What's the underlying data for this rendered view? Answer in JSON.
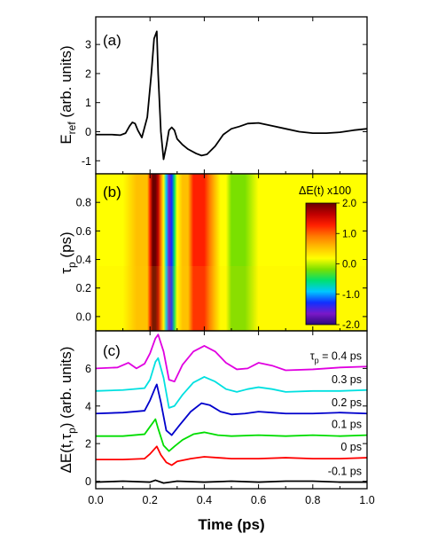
{
  "chart_data": [
    {
      "panel_label": "(a)",
      "type": "line",
      "ylabel": "E",
      "ylabel_sub": "ref",
      "ylabel_tail": " (arb. units)",
      "xlim": [
        0.0,
        1.0
      ],
      "ylim": [
        -1.45,
        3.95
      ],
      "yticks": [
        -1,
        0,
        1,
        2,
        3
      ],
      "ytick_labels": [
        "-1",
        "0",
        "1",
        "2",
        "3"
      ],
      "series": [
        {
          "color": "#000000",
          "x": [
            0.0,
            0.03,
            0.06,
            0.09,
            0.11,
            0.125,
            0.135,
            0.145,
            0.155,
            0.17,
            0.19,
            0.205,
            0.215,
            0.225,
            0.23,
            0.24,
            0.25,
            0.26,
            0.27,
            0.28,
            0.29,
            0.3,
            0.32,
            0.34,
            0.37,
            0.39,
            0.41,
            0.44,
            0.47,
            0.5,
            0.53,
            0.56,
            0.6,
            0.65,
            0.7,
            0.75,
            0.8,
            0.85,
            0.9,
            0.95,
            1.0
          ],
          "y": [
            -0.1,
            -0.1,
            -0.1,
            -0.12,
            -0.05,
            0.2,
            0.32,
            0.28,
            0.05,
            -0.2,
            0.5,
            2.0,
            3.2,
            3.45,
            2.0,
            0.0,
            -0.95,
            -0.5,
            0.05,
            0.15,
            0.05,
            -0.25,
            -0.45,
            -0.6,
            -0.75,
            -0.82,
            -0.78,
            -0.5,
            -0.1,
            0.1,
            0.18,
            0.28,
            0.3,
            0.2,
            0.1,
            0.0,
            -0.05,
            -0.05,
            -0.02,
            0.05,
            0.1
          ]
        }
      ]
    },
    {
      "panel_label": "(b)",
      "type": "heatmap",
      "ylabel": "τ",
      "ylabel_sub": "p",
      "ylabel_tail": " (ps)",
      "xlim": [
        0.0,
        1.0
      ],
      "ylim": [
        -0.1,
        1.0
      ],
      "yticks": [
        0.0,
        0.2,
        0.4,
        0.6,
        0.8
      ],
      "ytick_labels": [
        "0.0",
        "0.2",
        "0.4",
        "0.6",
        "0.8"
      ],
      "colorbar_title": "ΔE(t) x100",
      "colorbar_range": [
        -2.0,
        2.0
      ],
      "colorbar_ticks": [
        "2.0",
        "1.0",
        "0.0",
        "-1.0",
        "-2.0"
      ],
      "colormap": [
        "#2a0a7a",
        "#7a18c8",
        "#1030ff",
        "#00c8ff",
        "#00e070",
        "#7ae000",
        "#ffff00",
        "#ffc000",
        "#ff7a00",
        "#ff2000",
        "#c00000",
        "#6a0000"
      ],
      "x": [
        0.0,
        0.1,
        0.15,
        0.19,
        0.2,
        0.21,
        0.22,
        0.23,
        0.24,
        0.25,
        0.26,
        0.27,
        0.28,
        0.29,
        0.3,
        0.32,
        0.34,
        0.36,
        0.38,
        0.4,
        0.42,
        0.44,
        0.46,
        0.48,
        0.5,
        0.55,
        0.6,
        0.65,
        0.7,
        0.8,
        1.0
      ],
      "values_at_top": [
        0.3,
        0.3,
        0.45,
        0.6,
        1.2,
        2.0,
        2.0,
        2.0,
        1.6,
        0.5,
        -0.6,
        -1.5,
        -1.6,
        -0.9,
        0.0,
        0.5,
        0.8,
        1.3,
        1.5,
        1.5,
        1.5,
        1.1,
        0.5,
        0.2,
        -0.1,
        -0.4,
        0.1,
        0.3,
        0.3,
        0.3,
        0.3
      ],
      "values_at_bottom": [
        0.3,
        0.3,
        0.45,
        0.6,
        1.0,
        1.8,
        2.0,
        1.5,
        0.2,
        -0.5,
        -1.2,
        -1.7,
        -1.0,
        -0.3,
        0.2,
        0.4,
        0.6,
        0.9,
        1.1,
        1.0,
        0.6,
        0.3,
        0.2,
        0.1,
        0.0,
        -0.3,
        0.1,
        0.3,
        0.3,
        0.3,
        0.3
      ]
    },
    {
      "panel_label": "(c)",
      "type": "line",
      "ylabel": "ΔE(t,τ",
      "ylabel_sub": "p",
      "ylabel_tail": ") (arb. units)",
      "xlabel": "Time (ps)",
      "xlim": [
        0.0,
        1.0
      ],
      "ylim": [
        -0.4,
        8.0
      ],
      "xticks": [
        0.0,
        0.2,
        0.4,
        0.6,
        0.8,
        1.0
      ],
      "xtick_labels": [
        "0.0",
        "0.2",
        "0.4",
        "0.6",
        "0.8",
        "1.0"
      ],
      "yticks": [
        0,
        2,
        4,
        6
      ],
      "ytick_labels": [
        "0",
        "2",
        "4",
        "6"
      ],
      "series": [
        {
          "label": "-0.1 ps",
          "color": "#000000",
          "x": [
            0.0,
            0.1,
            0.2,
            0.22,
            0.25,
            0.3,
            0.4,
            0.5,
            0.6,
            0.7,
            0.8,
            0.9,
            1.0
          ],
          "y": [
            -0.05,
            0.0,
            -0.05,
            0.05,
            -0.1,
            0.0,
            -0.05,
            0.0,
            -0.05,
            0.0,
            0.0,
            -0.05,
            -0.05
          ]
        },
        {
          "label": "0 ps",
          "color": "#ff0000",
          "x": [
            0.0,
            0.1,
            0.18,
            0.2,
            0.225,
            0.24,
            0.26,
            0.28,
            0.3,
            0.35,
            0.4,
            0.45,
            0.5,
            0.6,
            0.7,
            0.8,
            0.9,
            1.0
          ],
          "y": [
            1.15,
            1.15,
            1.2,
            1.45,
            1.85,
            1.4,
            1.0,
            0.85,
            1.05,
            1.2,
            1.3,
            1.25,
            1.2,
            1.2,
            1.25,
            1.2,
            1.2,
            1.25
          ]
        },
        {
          "label": "0.1 ps",
          "color": "#00dd00",
          "x": [
            0.0,
            0.1,
            0.18,
            0.2,
            0.22,
            0.23,
            0.25,
            0.27,
            0.29,
            0.32,
            0.36,
            0.4,
            0.45,
            0.5,
            0.6,
            0.7,
            0.8,
            0.9,
            1.0
          ],
          "y": [
            2.4,
            2.4,
            2.5,
            2.9,
            3.3,
            2.8,
            1.9,
            1.6,
            1.85,
            2.2,
            2.5,
            2.6,
            2.45,
            2.4,
            2.45,
            2.4,
            2.45,
            2.4,
            2.45
          ]
        },
        {
          "label": "0.2 ps",
          "color": "#0000cc",
          "x": [
            0.0,
            0.1,
            0.18,
            0.2,
            0.22,
            0.225,
            0.24,
            0.26,
            0.28,
            0.31,
            0.35,
            0.39,
            0.42,
            0.46,
            0.5,
            0.55,
            0.6,
            0.65,
            0.7,
            0.8,
            0.9,
            1.0
          ],
          "y": [
            3.6,
            3.65,
            3.75,
            4.3,
            5.0,
            5.15,
            4.2,
            2.7,
            2.45,
            3.0,
            3.7,
            4.15,
            4.05,
            3.7,
            3.55,
            3.6,
            3.7,
            3.65,
            3.6,
            3.6,
            3.65,
            3.6
          ]
        },
        {
          "label": "0.3 ps",
          "color": "#00e0e0",
          "x": [
            0.0,
            0.1,
            0.18,
            0.2,
            0.22,
            0.23,
            0.25,
            0.27,
            0.29,
            0.32,
            0.36,
            0.4,
            0.44,
            0.48,
            0.52,
            0.56,
            0.6,
            0.65,
            0.7,
            0.8,
            0.9,
            1.0
          ],
          "y": [
            4.8,
            4.85,
            4.95,
            5.4,
            6.35,
            6.55,
            5.5,
            3.9,
            4.0,
            4.6,
            5.25,
            5.55,
            5.3,
            4.9,
            4.75,
            4.9,
            5.0,
            4.9,
            4.75,
            4.8,
            4.8,
            4.85
          ]
        },
        {
          "label": "τ",
          "label_sub": "p",
          "label_tail": " = 0.4 ps",
          "color": "#e000e0",
          "x": [
            0.0,
            0.08,
            0.12,
            0.15,
            0.18,
            0.2,
            0.22,
            0.23,
            0.25,
            0.27,
            0.29,
            0.32,
            0.36,
            0.4,
            0.44,
            0.48,
            0.52,
            0.56,
            0.6,
            0.65,
            0.7,
            0.8,
            0.9,
            1.0
          ],
          "y": [
            6.0,
            6.05,
            6.3,
            6.0,
            6.25,
            6.8,
            7.6,
            7.8,
            6.9,
            5.4,
            5.3,
            6.2,
            6.9,
            7.2,
            6.9,
            6.3,
            5.95,
            6.0,
            6.3,
            6.15,
            5.9,
            5.95,
            6.05,
            6.1
          ]
        }
      ]
    }
  ]
}
